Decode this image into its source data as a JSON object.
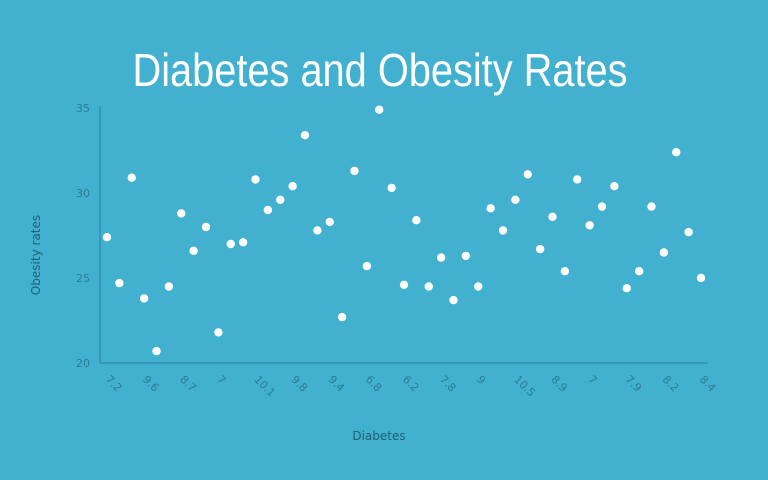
{
  "chart_data": {
    "type": "scatter",
    "title": "Diabetes and Obesity Rates",
    "xlabel": "Diabetes",
    "ylabel": "Obesity rates",
    "ylim": [
      20,
      35
    ],
    "y_ticks": [
      20,
      25,
      30,
      35
    ],
    "x_tick_labels": [
      "7.2",
      "9.6",
      "8.7",
      "7",
      "10.1",
      "9.8",
      "9.4",
      "6.8",
      "6.2",
      "7.8",
      "9",
      "10.5",
      "8.9",
      "7",
      "7.9",
      "8.2",
      "8.4"
    ],
    "grid": false,
    "legend": "none",
    "series": [
      {
        "color": "#ffffff",
        "values": [
          27.4,
          24.7,
          30.9,
          23.8,
          20.7,
          24.5,
          28.8,
          26.6,
          28.0,
          21.8,
          27.0,
          27.1,
          30.8,
          29.0,
          29.6,
          30.4,
          33.4,
          27.8,
          28.3,
          22.7,
          31.3,
          25.7,
          34.9,
          30.3,
          24.6,
          28.4,
          24.5,
          26.2,
          23.7,
          26.3,
          24.5,
          29.1,
          27.8,
          29.6,
          31.1,
          26.7,
          28.6,
          25.4,
          30.8,
          28.1,
          29.2,
          30.4,
          24.4,
          25.4,
          29.2,
          26.5,
          32.4,
          27.7,
          25.0
        ]
      }
    ]
  }
}
